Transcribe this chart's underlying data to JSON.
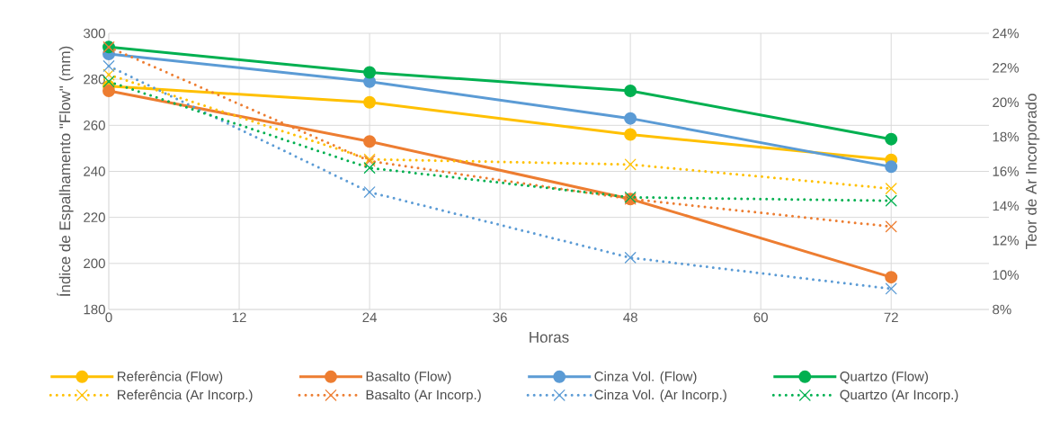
{
  "chart_data": {
    "type": "line",
    "xlabel": "Horas",
    "ylabel": "Índice de Espalhamento \"Flow\" (mm)",
    "y2label": "Teor de Ar Incorporado",
    "x": [
      0,
      24,
      48,
      72
    ],
    "xlim": [
      0,
      81
    ],
    "xticks": [
      0,
      12,
      24,
      36,
      48,
      60,
      72
    ],
    "ylim": [
      180,
      300
    ],
    "yticks": [
      180,
      200,
      220,
      240,
      260,
      280,
      300
    ],
    "y2lim": [
      8,
      24
    ],
    "y2ticks": [
      {
        "value": 8,
        "label": "8%"
      },
      {
        "value": 10,
        "label": "10%"
      },
      {
        "value": 12,
        "label": "12%"
      },
      {
        "value": 14,
        "label": "14%"
      },
      {
        "value": 16,
        "label": "16%"
      },
      {
        "value": 18,
        "label": "18%"
      },
      {
        "value": 20,
        "label": "20%"
      },
      {
        "value": 22,
        "label": "22%"
      },
      {
        "value": 24,
        "label": "24%"
      }
    ],
    "grid": true,
    "legend": "bottom",
    "series": [
      {
        "name": "Referência (Flow)",
        "color": "#ffc000",
        "values": [
          277,
          270,
          256,
          245
        ],
        "marker": "circle",
        "line_style": "solid",
        "axis": "y"
      },
      {
        "name": "Basalto (Flow)",
        "color": "#ed7d31",
        "values": [
          275,
          253,
          228,
          194
        ],
        "marker": "circle",
        "line_style": "solid",
        "axis": "y"
      },
      {
        "name": "Cinza Vol. (Flow)",
        "color": "#5b9bd5",
        "values": [
          291,
          279,
          263,
          242
        ],
        "marker": "circle",
        "line_style": "solid",
        "axis": "y"
      },
      {
        "name": "Quartzo (Flow)",
        "color": "#00b050",
        "values": [
          294,
          283,
          275,
          254
        ],
        "marker": "circle",
        "line_style": "solid",
        "axis": "y"
      },
      {
        "name": "Referência (Ar Incorp.)",
        "color": "#ffc000",
        "values": [
          21.6,
          16.7,
          16.4,
          15.0
        ],
        "marker": "cross",
        "line_style": "dotted",
        "axis": "y2"
      },
      {
        "name": "Basalto (Ar Incorp.)",
        "color": "#ed7d31",
        "values": [
          23.2,
          16.6,
          14.4,
          12.8
        ],
        "marker": "cross",
        "line_style": "dotted",
        "axis": "y2"
      },
      {
        "name": "Cinza Vol. (Ar Incorp.)",
        "color": "#5b9bd5",
        "values": [
          22.1,
          14.8,
          11.0,
          9.2
        ],
        "marker": "cross",
        "line_style": "dotted",
        "axis": "y2"
      },
      {
        "name": "Quartzo (Ar Incorp.)",
        "color": "#00b050",
        "values": [
          21.2,
          16.2,
          14.5,
          14.3
        ],
        "marker": "cross",
        "line_style": "dotted",
        "axis": "y2"
      }
    ]
  }
}
